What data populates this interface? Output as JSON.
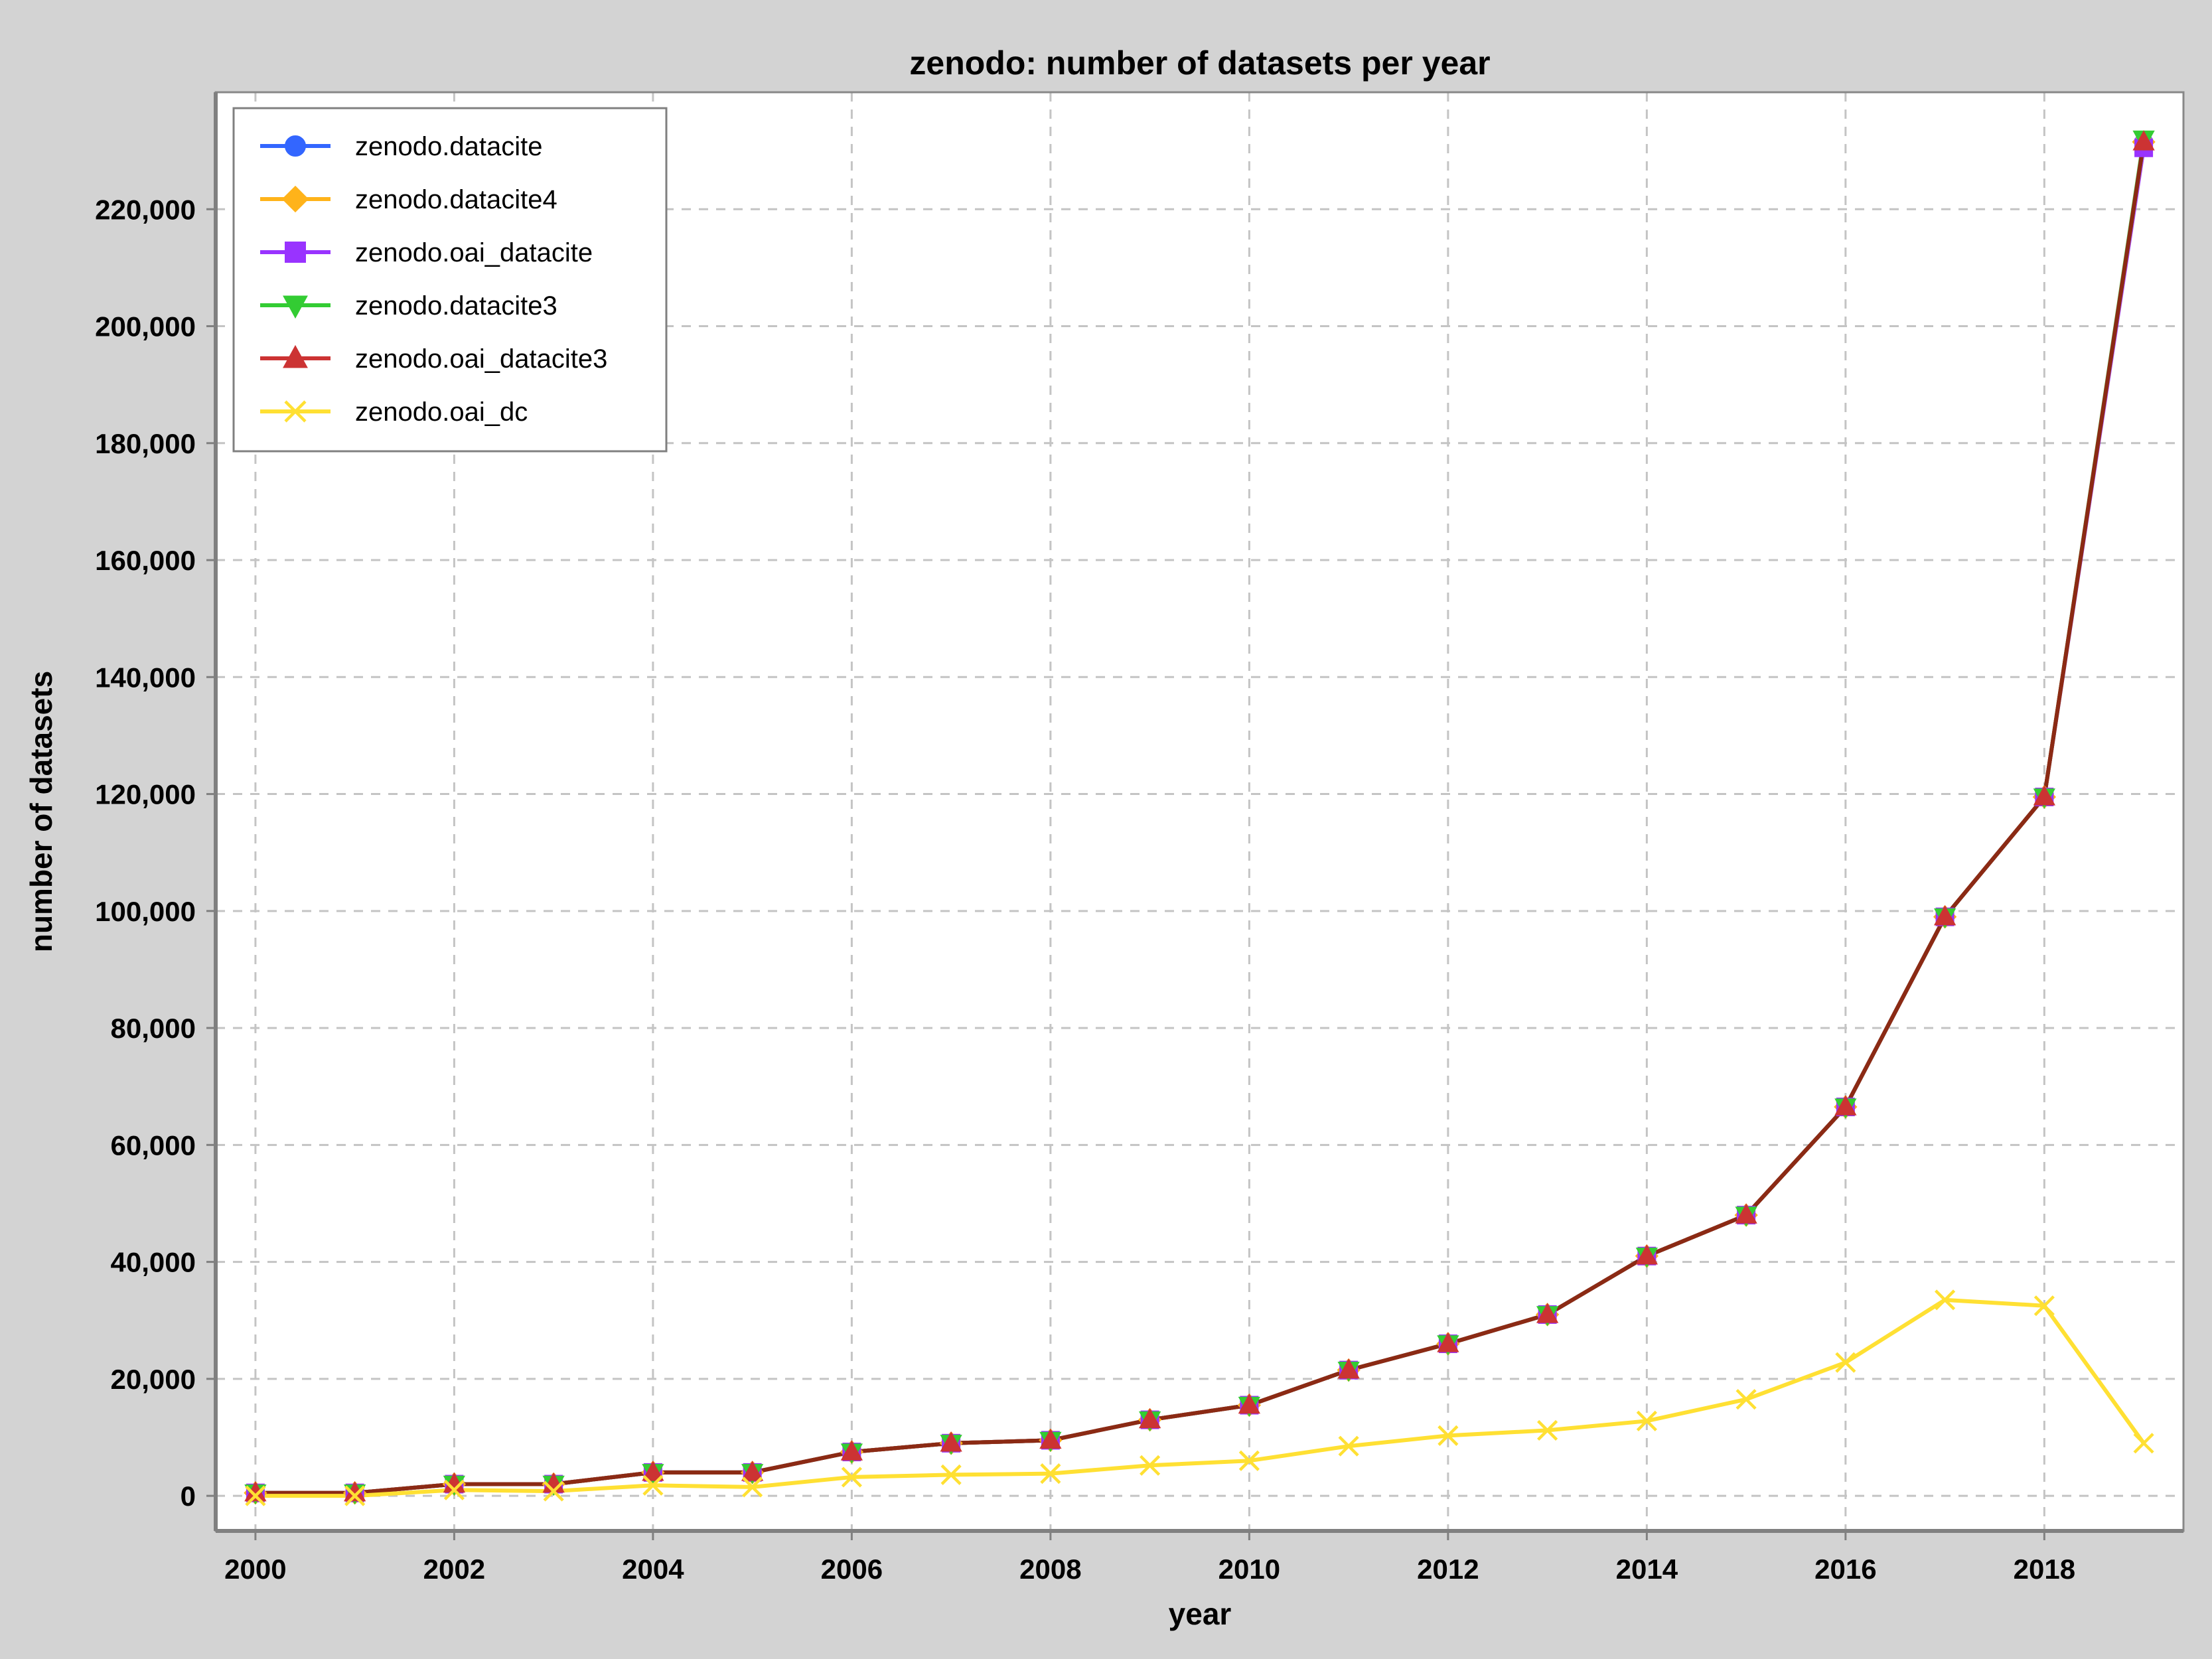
{
  "chart_data": {
    "type": "line",
    "title": "zenodo: number of datasets per year",
    "xlabel": "year",
    "ylabel": "number of datasets",
    "xlim": [
      1999.6,
      2019.4
    ],
    "ylim": [
      -6000,
      240000
    ],
    "x_ticks": [
      2000,
      2002,
      2004,
      2006,
      2008,
      2010,
      2012,
      2014,
      2016,
      2018
    ],
    "x_tick_labels": [
      "2000",
      "2002",
      "2004",
      "2006",
      "2008",
      "2010",
      "2012",
      "2014",
      "2016",
      "2018"
    ],
    "y_ticks": [
      0,
      20000,
      40000,
      60000,
      80000,
      100000,
      120000,
      140000,
      160000,
      180000,
      200000,
      220000
    ],
    "y_tick_labels": [
      "0",
      "20,000",
      "40,000",
      "60,000",
      "80,000",
      "100,000",
      "120,000",
      "140,000",
      "160,000",
      "180,000",
      "200,000",
      "220,000"
    ],
    "grid": true,
    "legend_position": "top-left",
    "x": [
      2000,
      2001,
      2002,
      2003,
      2004,
      2005,
      2006,
      2007,
      2008,
      2009,
      2010,
      2011,
      2012,
      2013,
      2014,
      2015,
      2016,
      2017,
      2018,
      2019
    ],
    "series": [
      {
        "name": "zenodo.datacite",
        "color": "#3366ff",
        "marker": "circle",
        "values": [
          500,
          500,
          2000,
          2000,
          4000,
          4000,
          7500,
          9000,
          9500,
          13000,
          15500,
          21500,
          26000,
          31000,
          41000,
          48000,
          66500,
          99000,
          119500,
          231500
        ]
      },
      {
        "name": "zenodo.datacite4",
        "color": "#ffb31a",
        "marker": "diamond",
        "values": [
          500,
          500,
          2000,
          2000,
          4000,
          4000,
          7500,
          9000,
          9500,
          13000,
          15500,
          21500,
          26000,
          31000,
          41000,
          48000,
          66500,
          99000,
          119500,
          231500
        ]
      },
      {
        "name": "zenodo.oai_datacite",
        "color": "#9933ff",
        "marker": "square",
        "values": [
          500,
          500,
          2000,
          2000,
          4000,
          4000,
          7500,
          9000,
          9500,
          13000,
          15500,
          21500,
          26000,
          31000,
          41000,
          48000,
          66500,
          99000,
          119500,
          230500
        ]
      },
      {
        "name": "zenodo.datacite3",
        "color": "#33cc33",
        "marker": "triangle-down",
        "values": [
          500,
          500,
          2000,
          2000,
          4000,
          4000,
          7500,
          9000,
          9500,
          13000,
          15500,
          21500,
          26000,
          31000,
          41000,
          48000,
          66500,
          99000,
          119500,
          232000
        ]
      },
      {
        "name": "zenodo.oai_datacite3",
        "color": "#cc3333",
        "marker": "triangle-up",
        "values": [
          500,
          500,
          2000,
          2000,
          4000,
          4000,
          7500,
          9000,
          9500,
          13000,
          15500,
          21500,
          26000,
          31000,
          41000,
          48000,
          66500,
          99000,
          119500,
          231500
        ]
      },
      {
        "name": "zenodo.oai_dc",
        "color": "#ffe033",
        "marker": "x",
        "values": [
          0,
          0,
          1000,
          800,
          1800,
          1500,
          3200,
          3600,
          3800,
          5200,
          6000,
          8500,
          10300,
          11200,
          12800,
          16500,
          22800,
          33500,
          32500,
          9000
        ]
      }
    ]
  }
}
